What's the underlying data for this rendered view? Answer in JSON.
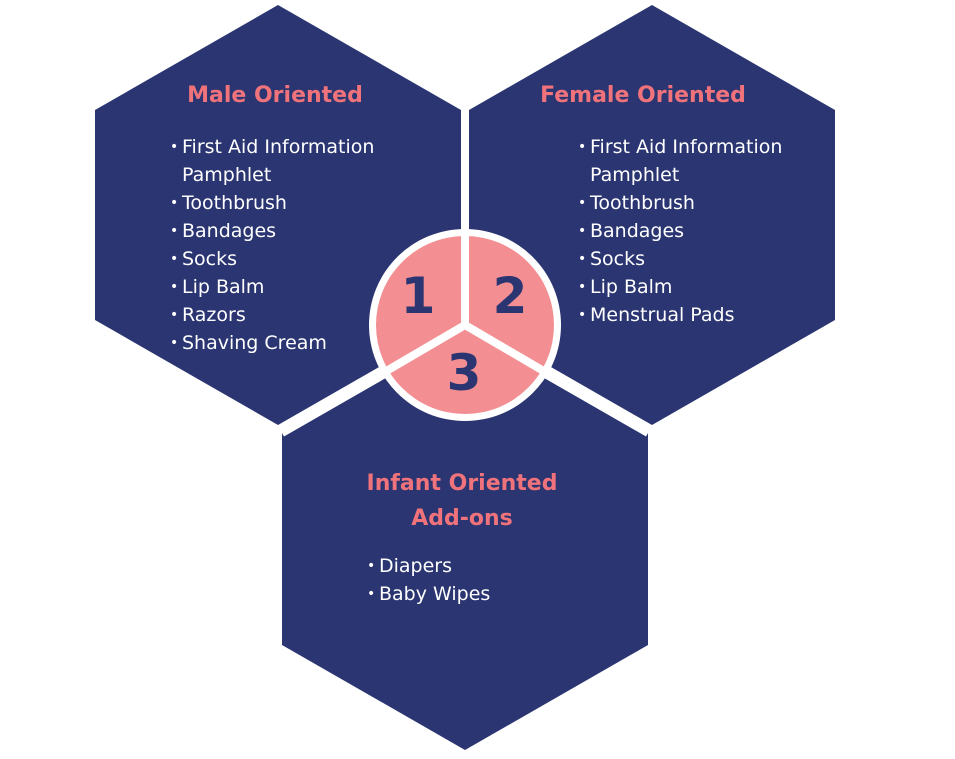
{
  "colors": {
    "hexagon": "#2a3571",
    "accent_pink": "#f38f92",
    "title_pink": "#f0737b",
    "number": "#2a3571",
    "text": "#ffffff"
  },
  "male": {
    "title": "Male Oriented",
    "items": [
      "First Aid Information Pamphlet",
      "Toothbrush",
      "Bandages",
      "Socks",
      "Lip Balm",
      "Razors",
      "Shaving Cream"
    ]
  },
  "female": {
    "title": "Female Oriented",
    "items": [
      "First Aid Information Pamphlet",
      "Toothbrush",
      "Bandages",
      "Socks",
      "Lip Balm",
      "Menstrual Pads"
    ]
  },
  "infant": {
    "title_line1": "Infant Oriented",
    "title_line2": "Add-ons",
    "items": [
      "Diapers",
      "Baby Wipes"
    ]
  },
  "numbers": {
    "one": "1",
    "two": "2",
    "three": "3"
  }
}
